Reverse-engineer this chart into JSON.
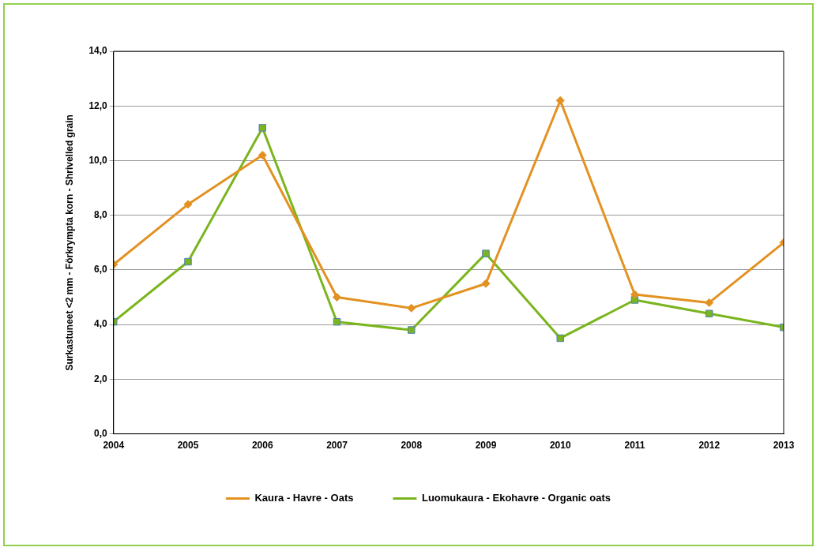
{
  "chart_data": {
    "type": "line",
    "ylabel": "Surkastuneet <2 mm - Förkrympta korn - Shrivelled grain",
    "x": [
      2004,
      2005,
      2006,
      2007,
      2008,
      2009,
      2010,
      2011,
      2012,
      2013
    ],
    "xlim": [
      2004,
      2013
    ],
    "xticks": [
      2004,
      2005,
      2006,
      2007,
      2008,
      2009,
      2010,
      2011,
      2012,
      2013
    ],
    "ylim": [
      0,
      14
    ],
    "yticks": [
      {
        "value": 0,
        "label": "0,0"
      },
      {
        "value": 2,
        "label": "2,0"
      },
      {
        "value": 4,
        "label": "4,0"
      },
      {
        "value": 6,
        "label": "6,0"
      },
      {
        "value": 8,
        "label": "8,0"
      },
      {
        "value": 10,
        "label": "10,0"
      },
      {
        "value": 12,
        "label": "12,0"
      },
      {
        "value": 14,
        "label": "14,0"
      }
    ],
    "series": [
      {
        "name": "Kaura - Havre - Oats",
        "color": "#e39120",
        "marker": "diamond",
        "values": [
          6.2,
          8.4,
          10.2,
          5.0,
          4.6,
          5.5,
          12.2,
          5.1,
          4.8,
          7.0
        ]
      },
      {
        "name": "Luomukaura - Ekohavre - Organic oats",
        "color": "#7ab51d",
        "marker": "square",
        "values": [
          4.1,
          6.3,
          11.2,
          4.1,
          3.8,
          6.6,
          3.5,
          4.9,
          4.4,
          3.9
        ]
      }
    ],
    "grid": "y",
    "legend": "bottom"
  }
}
